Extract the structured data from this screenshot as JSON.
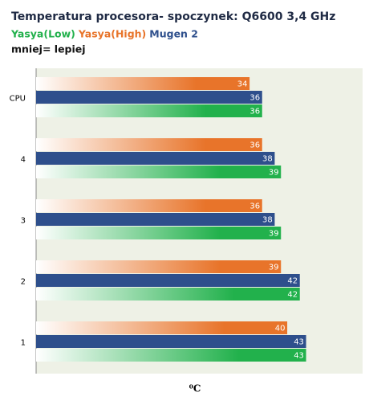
{
  "chart_data": {
    "type": "hbar",
    "title": "Temperatura procesora- spoczynek: Q6600 3,4 GHz",
    "subtitle": "mniej= lepiej",
    "x_label": "⁰C",
    "categories": [
      "CPU",
      "4",
      "3",
      "2",
      "1"
    ],
    "series": [
      {
        "name": "Yasya(Low)",
        "color": "#22b14c",
        "values": [
          36,
          39,
          39,
          42,
          43
        ]
      },
      {
        "name": "Yasya(High)",
        "color": "#e8742a",
        "values": [
          34,
          36,
          36,
          39,
          40
        ]
      },
      {
        "name": "Mugen 2",
        "color": "#2e4f8c",
        "values": [
          36,
          38,
          38,
          42,
          43
        ]
      }
    ],
    "draw_order": [
      1,
      2,
      0
    ],
    "xlim": [
      0,
      52
    ],
    "background": "#eef1e6"
  }
}
